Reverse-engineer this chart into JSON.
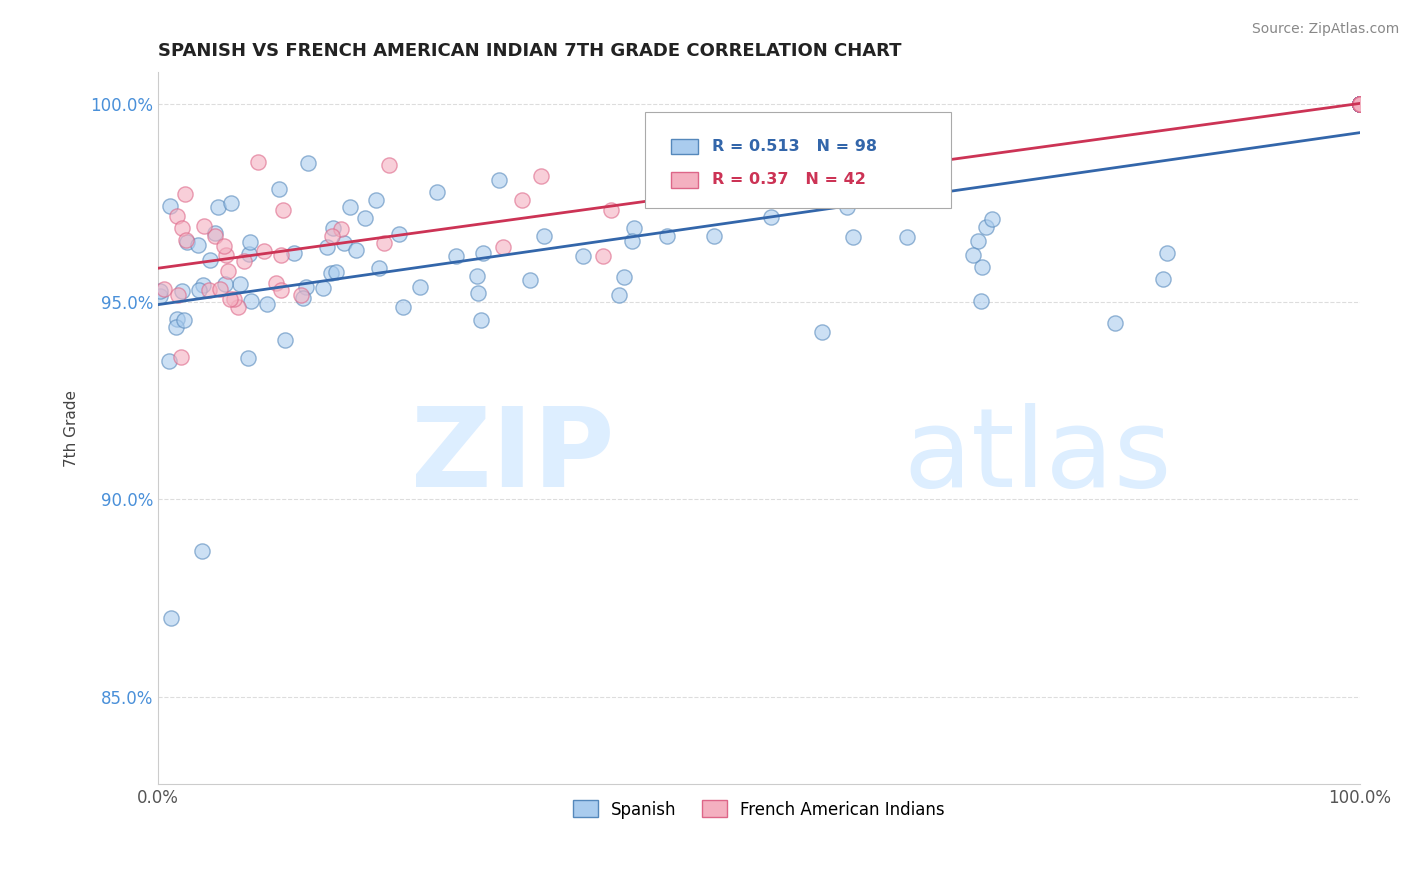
{
  "title": "SPANISH VS FRENCH AMERICAN INDIAN 7TH GRADE CORRELATION CHART",
  "source": "Source: ZipAtlas.com",
  "ylabel": "7th Grade",
  "xlim": [
    0.0,
    1.0
  ],
  "ylim": [
    0.828,
    1.008
  ],
  "yticks": [
    0.85,
    0.9,
    0.95,
    1.0
  ],
  "ytick_labels": [
    "85.0%",
    "90.0%",
    "95.0%",
    "100.0%"
  ],
  "xticks": [
    0.0,
    0.25,
    0.5,
    0.75,
    1.0
  ],
  "xtick_labels": [
    "0.0%",
    "",
    "",
    "",
    "100.0%"
  ],
  "blue_R": 0.513,
  "blue_N": 98,
  "pink_R": 0.37,
  "pink_N": 42,
  "blue_color": "#aaccee",
  "pink_color": "#f4b0c0",
  "blue_edge_color": "#5588bb",
  "pink_edge_color": "#dd6688",
  "blue_line_color": "#3366aa",
  "pink_line_color": "#cc3355",
  "marker_size": 120,
  "watermark_color": "#ddeeff",
  "grid_color": "#dddddd",
  "title_color": "#222222",
  "source_color": "#888888",
  "ylabel_color": "#444444"
}
